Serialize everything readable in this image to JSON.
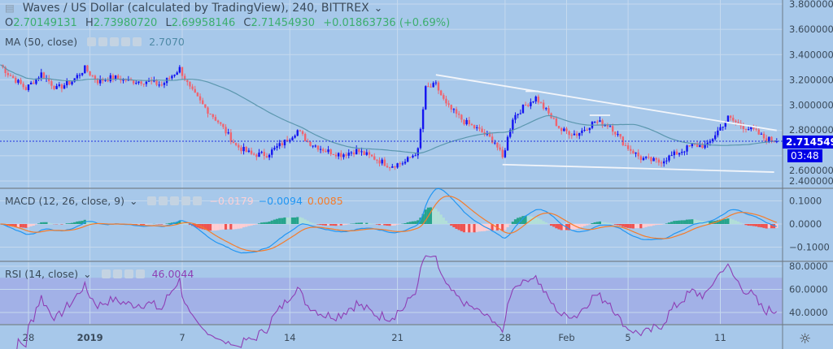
{
  "header": {
    "title": "Waves / US Dollar (calculated by TradingView), 240, BITTREX",
    "ohlc": {
      "o_label": "O",
      "o": "2.70149131",
      "h_label": "H",
      "h": "2.73980720",
      "l_label": "L",
      "l": "2.69958146",
      "c_label": "C",
      "c": "2.71454930",
      "change": "+0.01863736 (+0.69%)"
    }
  },
  "indicators": {
    "ma": {
      "label": "MA (50, close)",
      "value": "2.7070",
      "color": "#5b97ae"
    },
    "macd": {
      "label": "MACD (12, 26, close, 9)",
      "hist": "−0.0179",
      "macd": "−0.0094",
      "signal": "0.0085",
      "macd_color": "#2196f3",
      "signal_color": "#f57c2a"
    },
    "rsi": {
      "label": "RSI (14, close)",
      "value": "46.0044",
      "color": "#8e3fb5"
    }
  },
  "price_tag": {
    "value": "2.71454930",
    "countdown": "03:48",
    "color": "#0000e6"
  },
  "colors": {
    "up": "#1414f0",
    "down": "#ef6470",
    "background": "#a7c8ea"
  },
  "chart_data": {
    "type": "candlestick",
    "interval": "240",
    "price_ticks": [
      "3.80000000",
      "3.60000000",
      "3.40000000",
      "3.20000000",
      "3.00000000",
      "2.80000000",
      "2.60000000",
      "2.40000000"
    ],
    "ylim": [
      2.4,
      3.8
    ],
    "macd_ticks": [
      "0.1000",
      "0.0000",
      "−0.1000"
    ],
    "rsi_ticks": [
      "80.0000",
      "60.0000",
      "40.0000"
    ],
    "rsi_band": [
      30,
      70
    ],
    "x_ticks": [
      {
        "label": "28",
        "date": "2018-12-28"
      },
      {
        "label": "2019",
        "date": "2019-01-01",
        "bold": true
      },
      {
        "label": "7",
        "date": "2019-01-07"
      },
      {
        "label": "14",
        "date": "2019-01-14"
      },
      {
        "label": "21",
        "date": "2019-01-21"
      },
      {
        "label": "28",
        "date": "2019-01-28"
      },
      {
        "label": "Feb",
        "date": "2019-02-01"
      },
      {
        "label": "5",
        "date": "2019-02-05"
      },
      {
        "label": "11",
        "date": "2019-02-11"
      }
    ],
    "close_keyframes": [
      [
        "2018-12-26T04:00",
        3.32
      ],
      [
        "2018-12-26T16:00",
        3.25
      ],
      [
        "2018-12-27T20:00",
        3.13
      ],
      [
        "2018-12-28T20:00",
        3.25
      ],
      [
        "2018-12-29T20:00",
        3.13
      ],
      [
        "2018-12-30T20:00",
        3.19
      ],
      [
        "2018-12-31T16:00",
        3.29
      ],
      [
        "2019-01-01T12:00",
        3.19
      ],
      [
        "2019-01-02T12:00",
        3.22
      ],
      [
        "2019-01-03T16:00",
        3.19
      ],
      [
        "2019-01-04T16:00",
        3.19
      ],
      [
        "2019-01-05T16:00",
        3.16
      ],
      [
        "2019-01-06T20:00",
        3.29
      ],
      [
        "2019-01-07T12:00",
        3.13
      ],
      [
        "2019-01-08T08:00",
        3.0
      ],
      [
        "2019-01-09T08:00",
        2.87
      ],
      [
        "2019-01-10T12:00",
        2.68
      ],
      [
        "2019-01-11T12:00",
        2.61
      ],
      [
        "2019-01-12T12:00",
        2.61
      ],
      [
        "2019-01-13T16:00",
        2.71
      ],
      [
        "2019-01-14T12:00",
        2.8
      ],
      [
        "2019-01-15T04:00",
        2.71
      ],
      [
        "2019-01-16T08:00",
        2.64
      ],
      [
        "2019-01-17T08:00",
        2.61
      ],
      [
        "2019-01-18T08:00",
        2.64
      ],
      [
        "2019-01-19T12:00",
        2.58
      ],
      [
        "2019-01-20T12:00",
        2.52
      ],
      [
        "2019-01-21T12:00",
        2.55
      ],
      [
        "2019-01-22T08:00",
        2.64
      ],
      [
        "2019-01-22T20:00",
        3.13
      ],
      [
        "2019-01-23T12:00",
        3.16
      ],
      [
        "2019-01-24T04:00",
        3.0
      ],
      [
        "2019-01-25T08:00",
        2.87
      ],
      [
        "2019-01-26T08:00",
        2.8
      ],
      [
        "2019-01-27T08:00",
        2.71
      ],
      [
        "2019-01-27T20:00",
        2.58
      ],
      [
        "2019-01-28T12:00",
        2.9
      ],
      [
        "2019-01-29T08:00",
        3.0
      ],
      [
        "2019-01-30T00:00",
        3.06
      ],
      [
        "2019-01-30T20:00",
        2.93
      ],
      [
        "2019-01-31T16:00",
        2.8
      ],
      [
        "2019-02-01T16:00",
        2.77
      ],
      [
        "2019-02-02T20:00",
        2.87
      ],
      [
        "2019-02-03T20:00",
        2.84
      ],
      [
        "2019-02-04T20:00",
        2.68
      ],
      [
        "2019-02-05T20:00",
        2.58
      ],
      [
        "2019-02-07T00:00",
        2.55
      ],
      [
        "2019-02-08T00:00",
        2.61
      ],
      [
        "2019-02-09T04:00",
        2.68
      ],
      [
        "2019-02-10T04:00",
        2.68
      ],
      [
        "2019-02-10T16:00",
        2.77
      ],
      [
        "2019-02-11T12:00",
        2.9
      ],
      [
        "2019-02-12T08:00",
        2.84
      ],
      [
        "2019-02-13T04:00",
        2.8
      ],
      [
        "2019-02-13T20:00",
        2.74
      ],
      [
        "2019-02-14T16:00",
        2.7145
      ]
    ],
    "trendlines": [
      {
        "from": [
          "2019-01-23T12:00",
          3.24
        ],
        "to": [
          "2019-02-14T16:00",
          2.8
        ]
      },
      {
        "from": [
          "2019-01-27T20:00",
          2.53
        ],
        "to": [
          "2019-02-14T12:00",
          2.47
        ]
      },
      {
        "from": [
          "2019-01-29T08:00",
          3.11
        ],
        "to": [
          "2019-01-30T04:00",
          3.11
        ]
      },
      {
        "from": [
          "2019-02-02T12:00",
          2.92
        ],
        "to": [
          "2019-02-03T20:00",
          2.92
        ]
      }
    ]
  }
}
